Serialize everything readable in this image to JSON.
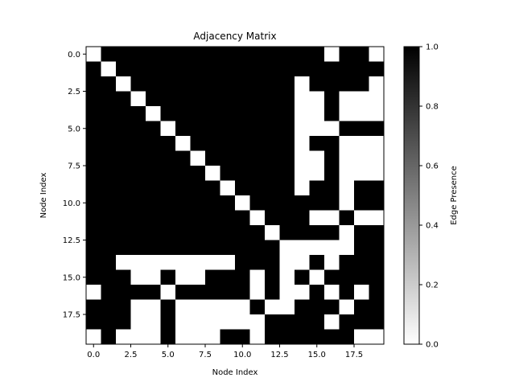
{
  "chart_data": {
    "type": "heatmap",
    "title": "Adjacency Matrix",
    "xlabel": "Node Index",
    "ylabel": "Node Index",
    "colorbar_label": "Edge Presence",
    "x_ticks": [
      "0.0",
      "2.5",
      "5.0",
      "7.5",
      "10.0",
      "12.5",
      "15.0",
      "17.5"
    ],
    "y_ticks": [
      "0.0",
      "2.5",
      "5.0",
      "7.5",
      "10.0",
      "12.5",
      "15.0",
      "17.5"
    ],
    "colorbar_ticks": [
      "0.0",
      "0.2",
      "0.4",
      "0.6",
      "0.8",
      "1.0"
    ],
    "vmin": 0.0,
    "vmax": 1.0,
    "colormap": [
      "#ffffff",
      "#000000"
    ],
    "matrix": [
      [
        0,
        1,
        1,
        1,
        1,
        1,
        1,
        1,
        1,
        1,
        1,
        1,
        1,
        1,
        1,
        1,
        0,
        1,
        1,
        0
      ],
      [
        1,
        0,
        1,
        1,
        1,
        1,
        1,
        1,
        1,
        1,
        1,
        1,
        1,
        1,
        1,
        1,
        1,
        1,
        1,
        1
      ],
      [
        1,
        1,
        0,
        1,
        1,
        1,
        1,
        1,
        1,
        1,
        1,
        1,
        1,
        1,
        0,
        1,
        1,
        1,
        1,
        0
      ],
      [
        1,
        1,
        1,
        0,
        1,
        1,
        1,
        1,
        1,
        1,
        1,
        1,
        1,
        1,
        0,
        0,
        1,
        0,
        0,
        0
      ],
      [
        1,
        1,
        1,
        1,
        0,
        1,
        1,
        1,
        1,
        1,
        1,
        1,
        1,
        1,
        0,
        0,
        1,
        0,
        0,
        0
      ],
      [
        1,
        1,
        1,
        1,
        1,
        0,
        1,
        1,
        1,
        1,
        1,
        1,
        1,
        1,
        0,
        0,
        0,
        1,
        1,
        1
      ],
      [
        1,
        1,
        1,
        1,
        1,
        1,
        0,
        1,
        1,
        1,
        1,
        1,
        1,
        1,
        0,
        1,
        1,
        0,
        0,
        0
      ],
      [
        1,
        1,
        1,
        1,
        1,
        1,
        1,
        0,
        1,
        1,
        1,
        1,
        1,
        1,
        0,
        0,
        1,
        0,
        0,
        0
      ],
      [
        1,
        1,
        1,
        1,
        1,
        1,
        1,
        1,
        0,
        1,
        1,
        1,
        1,
        1,
        0,
        0,
        1,
        0,
        0,
        0
      ],
      [
        1,
        1,
        1,
        1,
        1,
        1,
        1,
        1,
        1,
        0,
        1,
        1,
        1,
        1,
        0,
        1,
        1,
        0,
        1,
        1
      ],
      [
        1,
        1,
        1,
        1,
        1,
        1,
        1,
        1,
        1,
        1,
        0,
        1,
        1,
        1,
        1,
        1,
        1,
        0,
        1,
        1
      ],
      [
        1,
        1,
        1,
        1,
        1,
        1,
        1,
        1,
        1,
        1,
        1,
        0,
        1,
        1,
        1,
        0,
        0,
        1,
        0,
        0
      ],
      [
        1,
        1,
        1,
        1,
        1,
        1,
        1,
        1,
        1,
        1,
        1,
        1,
        0,
        1,
        1,
        1,
        1,
        0,
        1,
        1
      ],
      [
        1,
        1,
        1,
        1,
        1,
        1,
        1,
        1,
        1,
        1,
        1,
        1,
        1,
        0,
        0,
        0,
        0,
        0,
        1,
        1
      ],
      [
        1,
        1,
        0,
        0,
        0,
        0,
        0,
        0,
        0,
        0,
        1,
        1,
        1,
        0,
        0,
        1,
        0,
        1,
        1,
        1
      ],
      [
        1,
        1,
        1,
        0,
        0,
        1,
        0,
        0,
        1,
        1,
        1,
        0,
        1,
        0,
        1,
        0,
        1,
        1,
        1,
        1
      ],
      [
        0,
        1,
        1,
        1,
        1,
        0,
        1,
        1,
        1,
        1,
        1,
        0,
        1,
        0,
        0,
        1,
        0,
        1,
        0,
        1
      ],
      [
        1,
        1,
        1,
        0,
        0,
        1,
        0,
        0,
        0,
        0,
        0,
        1,
        0,
        0,
        1,
        1,
        1,
        0,
        1,
        1
      ],
      [
        1,
        1,
        1,
        0,
        0,
        1,
        0,
        0,
        0,
        0,
        0,
        0,
        1,
        1,
        1,
        1,
        0,
        1,
        1,
        1
      ],
      [
        0,
        1,
        0,
        0,
        0,
        1,
        0,
        0,
        0,
        1,
        1,
        0,
        1,
        1,
        1,
        1,
        1,
        1,
        0,
        0
      ]
    ]
  }
}
